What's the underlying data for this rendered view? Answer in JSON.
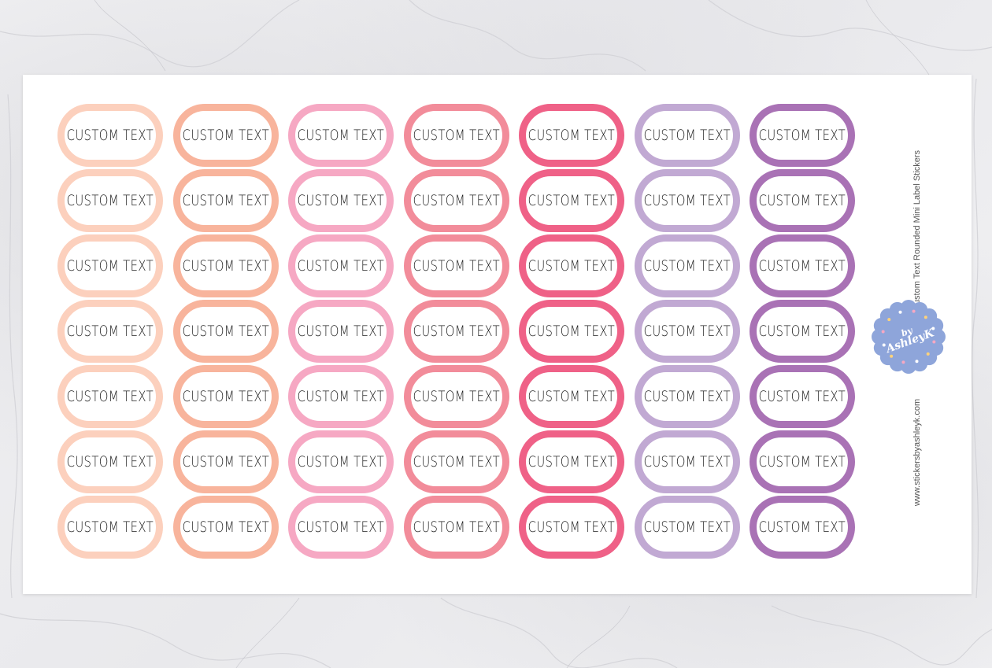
{
  "sheet": {
    "label_text": "CUSTOM TEXT",
    "rows": 7,
    "columns": [
      {
        "color": "#fcd0bd"
      },
      {
        "color": "#f8b49c"
      },
      {
        "color": "#f6a8c3"
      },
      {
        "color": "#f28c9a"
      },
      {
        "color": "#ef6187"
      },
      {
        "color": "#c1a9d3"
      },
      {
        "color": "#a972b5"
      }
    ],
    "side_title": "Custom Text Rounded Mini Label Stickers",
    "side_url": "www.stickersbyashleyk.com",
    "badge": {
      "by": "by",
      "name": "AshleyK",
      "color": "#8ea5da"
    }
  }
}
